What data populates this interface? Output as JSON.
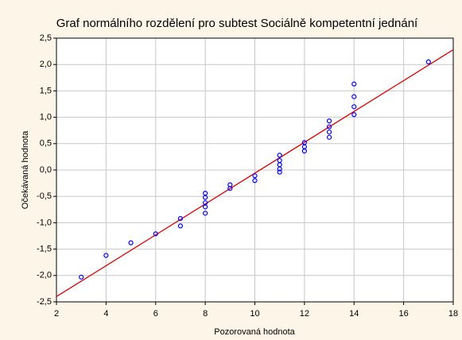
{
  "chart_data": {
    "type": "scatter",
    "title": "Graf normálního rozdělení pro subtest Sociálně kompetentní jednání",
    "xlabel": "Pozorovaná hodnota",
    "ylabel": "Očekávaná hodnota",
    "x": [
      3,
      4,
      5,
      6,
      7,
      7,
      8,
      8,
      8,
      8,
      8,
      9,
      9,
      10,
      10,
      11,
      11,
      11,
      11,
      11,
      12,
      12,
      12,
      13,
      13,
      13,
      13,
      14,
      14,
      14,
      14,
      17
    ],
    "values": [
      -2.03,
      -1.62,
      -1.38,
      -1.21,
      -0.92,
      -1.06,
      -0.44,
      -0.52,
      -0.62,
      -0.7,
      -0.82,
      -0.28,
      -0.35,
      -0.11,
      -0.2,
      0.28,
      0.18,
      0.1,
      0.02,
      -0.04,
      0.52,
      0.44,
      0.36,
      0.93,
      0.82,
      0.72,
      0.62,
      1.63,
      1.39,
      1.2,
      1.05,
      2.05
    ],
    "color": "#0000ff",
    "line": {
      "x": [
        2,
        18
      ],
      "values": [
        -2.4,
        2.28
      ],
      "color": "#e00000"
    },
    "xlim": [
      2,
      18
    ],
    "xticks": [
      2,
      4,
      6,
      8,
      10,
      12,
      14,
      16,
      18
    ],
    "ylim": [
      -2.5,
      2.5
    ],
    "yticks": [
      {
        "value": -2.5,
        "label": "-2,5"
      },
      {
        "value": -2,
        "label": "-2,0"
      },
      {
        "value": -1.5,
        "label": "-1,5"
      },
      {
        "value": -1,
        "label": "-1,0"
      },
      {
        "value": -0.5,
        "label": "-0,5"
      },
      {
        "value": 0,
        "label": "0,0"
      },
      {
        "value": 0.5,
        "label": "0,5"
      },
      {
        "value": 1,
        "label": "1,0"
      },
      {
        "value": 1.5,
        "label": "1,5"
      },
      {
        "value": 2,
        "label": "2,0"
      },
      {
        "value": 2.5,
        "label": "2,5"
      }
    ],
    "grid": true
  }
}
